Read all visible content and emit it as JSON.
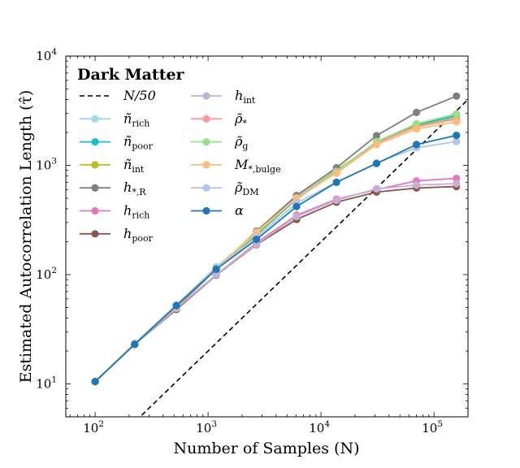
{
  "chart_data": {
    "type": "line",
    "title": "",
    "xlabel": "Number of Samples (N)",
    "ylabel": "Estimated Autocorrelation Length (τ̂)",
    "xscale": "log",
    "yscale": "log",
    "xlim": [
      55,
      200000
    ],
    "ylim": [
      5,
      10000
    ],
    "x_ticks": [
      {
        "value": 100,
        "base": "10",
        "exp": "2"
      },
      {
        "value": 1000,
        "base": "10",
        "exp": "3"
      },
      {
        "value": 10000,
        "base": "10",
        "exp": "4"
      },
      {
        "value": 100000,
        "base": "10",
        "exp": "5"
      }
    ],
    "y_ticks": [
      {
        "value": 10,
        "base": "10",
        "exp": "1"
      },
      {
        "value": 100,
        "base": "10",
        "exp": "2"
      },
      {
        "value": 1000,
        "base": "10",
        "exp": "3"
      },
      {
        "value": 10000,
        "base": "10",
        "exp": "4"
      }
    ],
    "grid": false,
    "legend": {
      "title": "Dark Matter",
      "placement": "top-left",
      "columns": 2
    },
    "x": [
      100,
      224,
      524,
      1180,
      2680,
      6070,
      13690,
      31000,
      70000,
      158000
    ],
    "reference_line": {
      "name": "N/50",
      "color": "#000000",
      "style": "dashed",
      "divisor": 50
    },
    "series": [
      {
        "name": "ñ_rich",
        "color": "#9edae5",
        "values": [
          10.5,
          23.5,
          53,
          118,
          240,
          510,
          910,
          1550,
          2350,
          2800
        ]
      },
      {
        "name": "ñ_poor",
        "color": "#17becf",
        "values": [
          10.5,
          23.5,
          52,
          115,
          230,
          490,
          880,
          1600,
          2350,
          2850
        ]
      },
      {
        "name": "ñ_int",
        "color": "#bcbd22",
        "values": [
          10.5,
          23.5,
          51,
          114,
          235,
          500,
          900,
          1600,
          2300,
          2700
        ]
      },
      {
        "name": "h_*,R",
        "color": "#7f7f7f",
        "values": [
          10.5,
          23.5,
          50,
          112,
          250,
          530,
          950,
          1870,
          3050,
          4300
        ]
      },
      {
        "name": "h_rich",
        "color": "#e377c2",
        "values": [
          10.5,
          23,
          49,
          100,
          195,
          350,
          490,
          600,
          720,
          760
        ]
      },
      {
        "name": "h_poor",
        "color": "#8c564b",
        "values": [
          10.5,
          23,
          48,
          99,
          188,
          320,
          460,
          570,
          620,
          640
        ]
      },
      {
        "name": "h_int",
        "color": "#c5b0d5",
        "values": [
          10.5,
          23,
          49,
          100,
          190,
          340,
          480,
          610,
          660,
          680
        ]
      },
      {
        "name": "ρ̃_*",
        "color": "#ff9896",
        "values": [
          10.5,
          23.5,
          51,
          115,
          245,
          505,
          880,
          1600,
          2250,
          2650
        ]
      },
      {
        "name": "ρ̃_g",
        "color": "#98df8a",
        "values": [
          10.5,
          23.5,
          51,
          115,
          240,
          500,
          880,
          1650,
          2400,
          2950
        ]
      },
      {
        "name": "M_*,bulge",
        "color": "#ffbb78",
        "values": [
          10.5,
          23.5,
          51,
          115,
          245,
          500,
          850,
          1550,
          2150,
          2500
        ]
      },
      {
        "name": "ρ̃_DM",
        "color": "#aec7e8",
        "values": [
          10.5,
          23.5,
          53,
          115,
          220,
          450,
          700,
          1050,
          1450,
          1650
        ]
      },
      {
        "name": "α",
        "color": "#1f77b4",
        "values": [
          10.5,
          23,
          52,
          112,
          210,
          420,
          700,
          1040,
          1550,
          1880
        ]
      }
    ]
  }
}
